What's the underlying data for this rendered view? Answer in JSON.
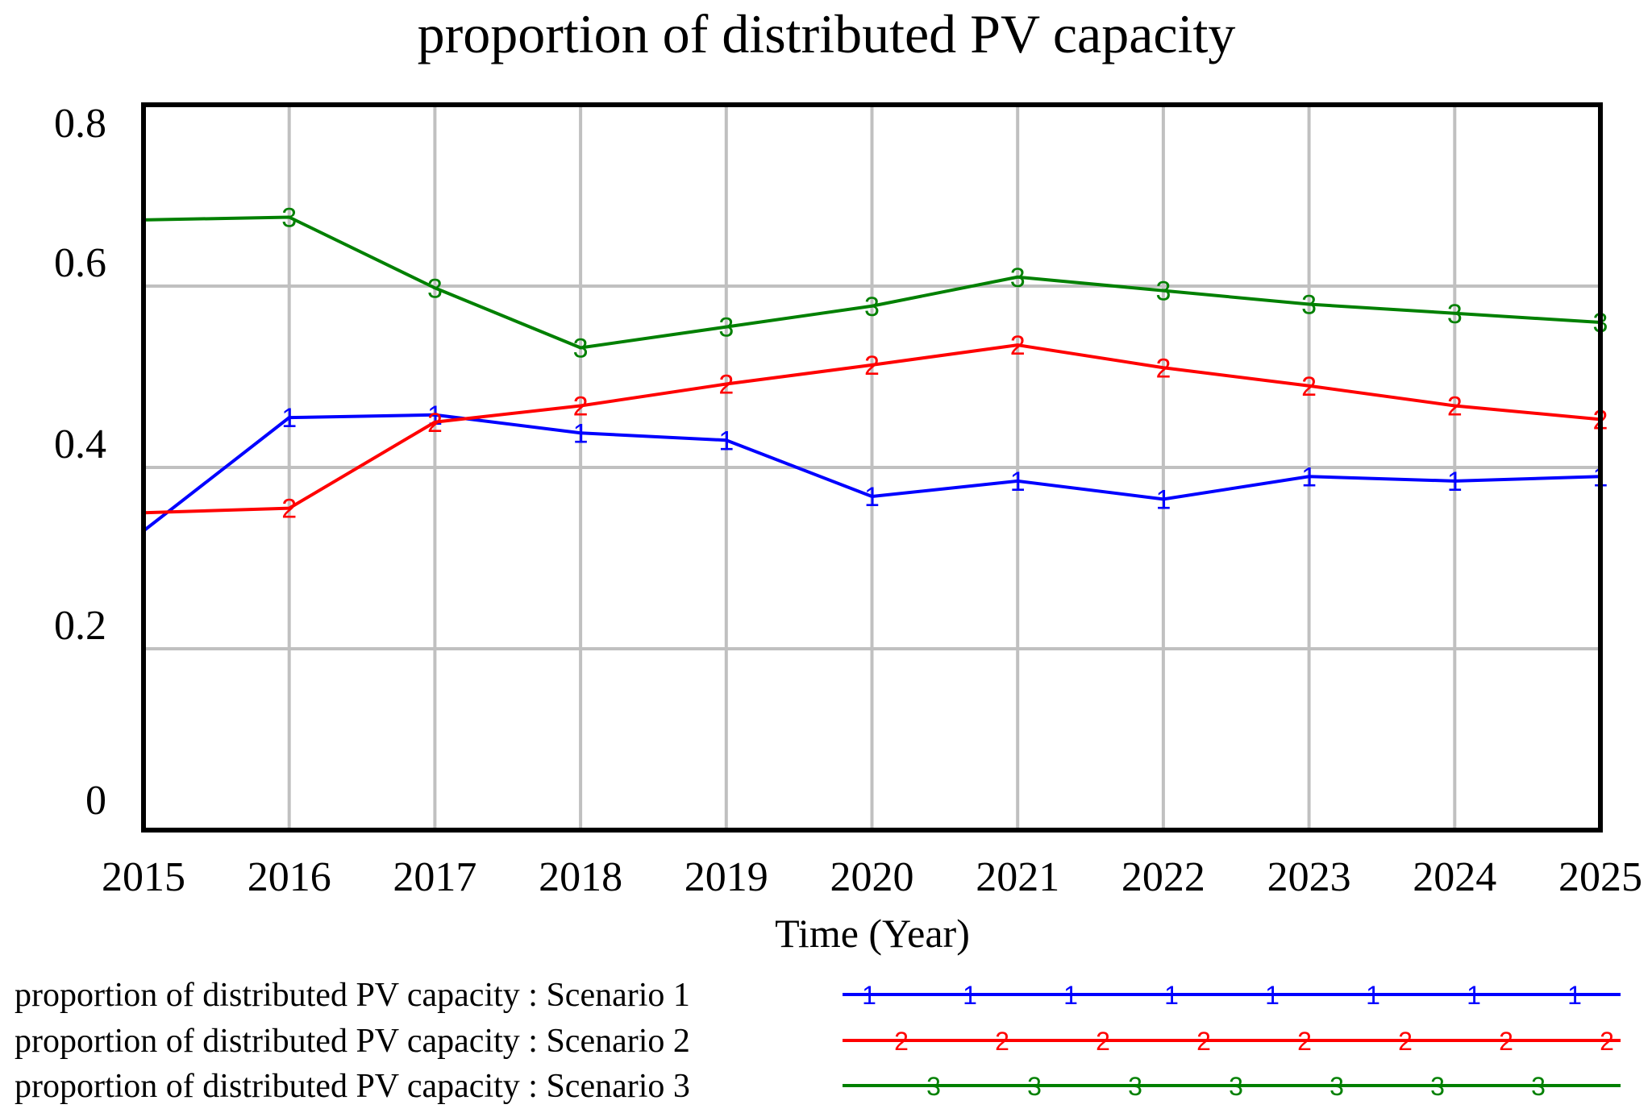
{
  "chart_data": {
    "type": "line",
    "title": "proportion of distributed PV capacity",
    "xlabel": "Time (Year)",
    "ylabel": "",
    "x": [
      2015,
      2016,
      2017,
      2018,
      2019,
      2020,
      2021,
      2022,
      2023,
      2024,
      2025
    ],
    "x_tick_labels": [
      "2015",
      "2016",
      "2017",
      "2018",
      "2019",
      "2020",
      "2021",
      "2022",
      "2023",
      "2024",
      "2025"
    ],
    "y_ticks": [
      0,
      0.2,
      0.4,
      0.6,
      0.8
    ],
    "y_tick_labels": [
      "0",
      "0.2",
      "0.4",
      "0.6",
      "0.8"
    ],
    "xlim": [
      2015,
      2025
    ],
    "ylim": [
      0,
      0.8
    ],
    "grid": true,
    "legend_position": "bottom",
    "series": [
      {
        "name": "proportion of distributed PV capacity : Scenario 1",
        "marker": "1",
        "color": "#0000ff",
        "values": [
          0.33,
          0.455,
          0.458,
          0.438,
          0.43,
          0.368,
          0.385,
          0.365,
          0.39,
          0.385,
          0.39
        ]
      },
      {
        "name": "proportion of distributed PV capacity : Scenario 2",
        "marker": "2",
        "color": "#ff0000",
        "values": [
          0.35,
          0.355,
          0.45,
          0.468,
          0.492,
          0.513,
          0.535,
          0.51,
          0.49,
          0.468,
          0.453
        ]
      },
      {
        "name": "proportion of distributed PV capacity : Scenario 3",
        "marker": "3",
        "color": "#008000",
        "values": [
          0.673,
          0.676,
          0.598,
          0.532,
          0.555,
          0.578,
          0.61,
          0.595,
          0.58,
          0.57,
          0.56
        ]
      }
    ]
  }
}
